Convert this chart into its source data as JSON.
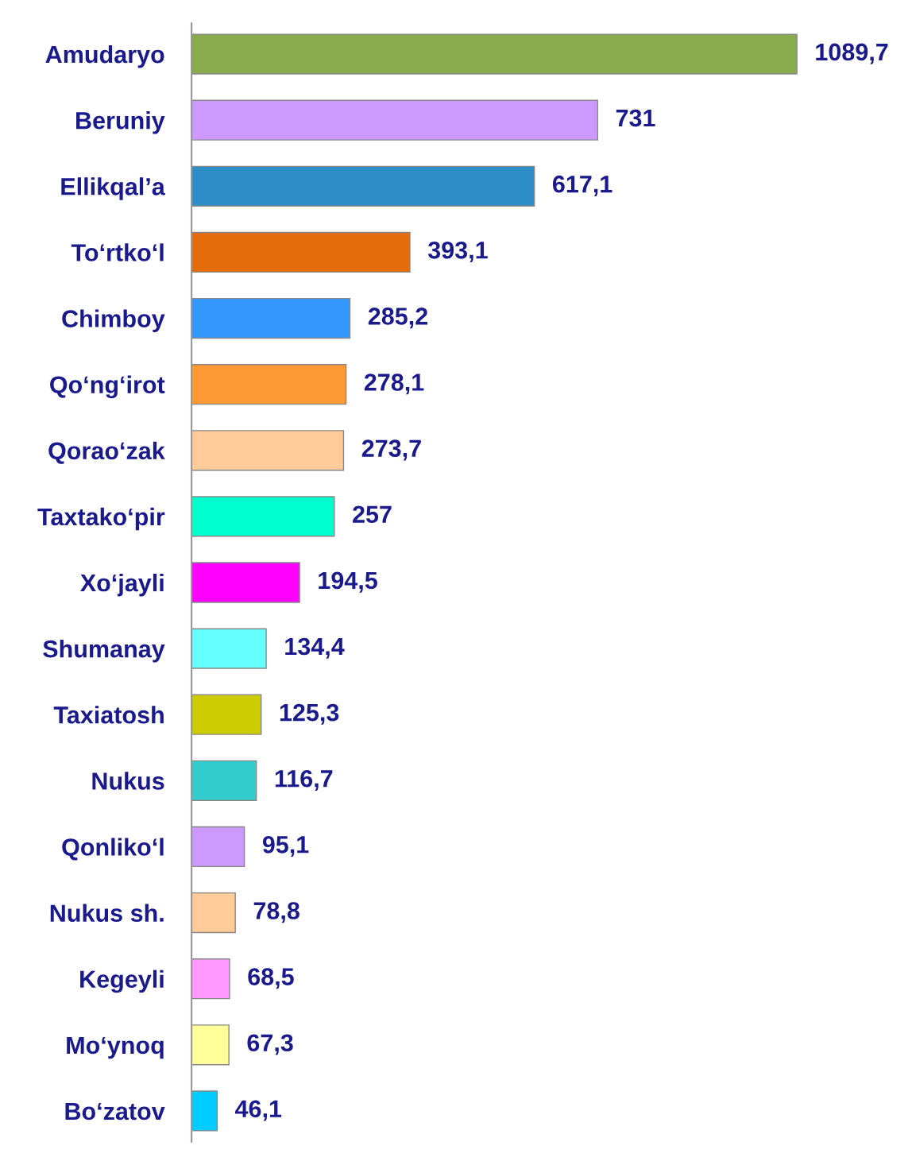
{
  "chart_data": {
    "type": "bar",
    "orientation": "horizontal",
    "tick_labels": "y",
    "grid": false,
    "legend": false,
    "categories": [
      "Amudaryo",
      "Beruniy",
      "Ellikqal’a",
      "To‘rtko‘l",
      "Chimboy",
      "Qo‘ng‘irot",
      "Qorao‘zak",
      "Taxtako‘pir",
      "Xo‘jayli",
      "Shumanay",
      "Taxiatosh",
      "Nukus",
      "Qonliko‘l",
      "Nukus sh.",
      "Kegeyli",
      "Mo‘ynoq",
      "Bo‘zatov"
    ],
    "values": [
      1089.7,
      731,
      617.1,
      393.1,
      285.2,
      278.1,
      273.7,
      257,
      194.5,
      134.4,
      125.3,
      116.7,
      95.1,
      78.8,
      68.5,
      67.3,
      46.1
    ],
    "value_labels": [
      "1089,7",
      "731",
      "617,1",
      "393,1",
      "285,2",
      "278,1",
      "273,7",
      "257",
      "194,5",
      "134,4",
      "125,3",
      "116,7",
      "95,1",
      "78,8",
      "68,5",
      "67,3",
      "46,1"
    ],
    "colors": [
      "#8aab4b",
      "#cc99ff",
      "#2e8fc8",
      "#e46c0a",
      "#3399ff",
      "#ff9933",
      "#ffcc99",
      "#00ffcc",
      "#ff00ff",
      "#66ffff",
      "#cccc00",
      "#33cccc",
      "#cc99ff",
      "#ffcc99",
      "#ff99ff",
      "#ffff99",
      "#00ccff"
    ]
  }
}
